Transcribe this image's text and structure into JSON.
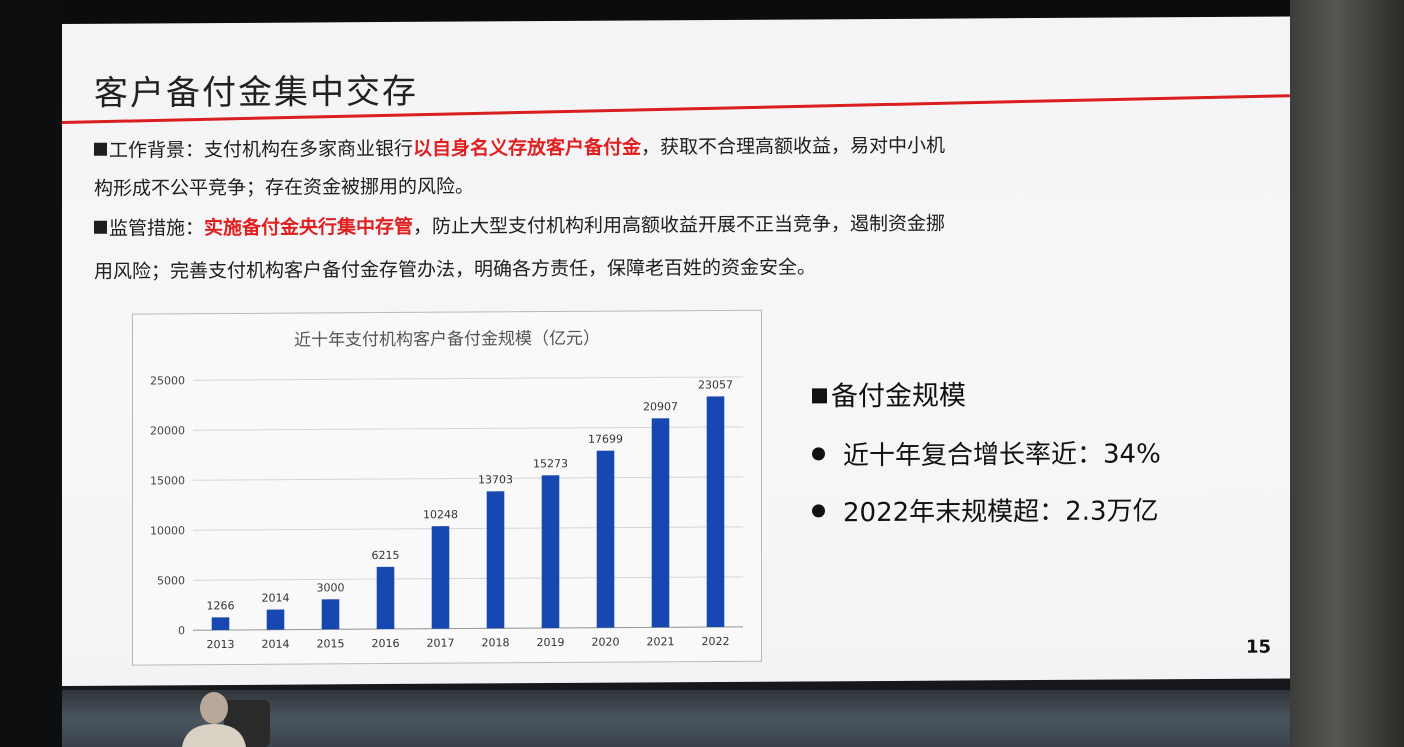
{
  "slide": {
    "title": "客户备付金集中交存",
    "para1": {
      "prefix": "工作背景：支付机构在多家商业银行",
      "highlight": "以自身名义存放客户备付金",
      "suffix": "，获取不合理高额收益，易对中小机",
      "line2": "构形成不公平竞争；存在资金被挪用的风险。"
    },
    "para2": {
      "prefix": "监管措施：",
      "highlight": "实施备付金央行集中存管",
      "suffix": "，防止大型支付机构利用高额收益开展不正当竞争，遏制资金挪",
      "line2": "用风险；完善支付机构客户备付金存管办法，明确各方责任，保障老百姓的资金安全。"
    },
    "right_panel": {
      "title": "备付金规模",
      "items": [
        "近十年复合增长率近：34%",
        "2022年末规模超：2.3万亿"
      ]
    },
    "page_number": "15"
  },
  "chart_data": {
    "type": "bar",
    "title": "近十年支付机构客户备付金规模（亿元）",
    "categories": [
      "2013",
      "2014",
      "2015",
      "2016",
      "2017",
      "2018",
      "2019",
      "2020",
      "2021",
      "2022"
    ],
    "values": [
      1266,
      2014,
      3000,
      6215,
      10248,
      13703,
      15273,
      17699,
      20907,
      23057
    ],
    "ylim": [
      0,
      25000
    ],
    "yticks": [
      0,
      5000,
      10000,
      15000,
      20000,
      25000
    ],
    "grid": true,
    "bar_color": "#1747b0",
    "data_labels": true
  }
}
